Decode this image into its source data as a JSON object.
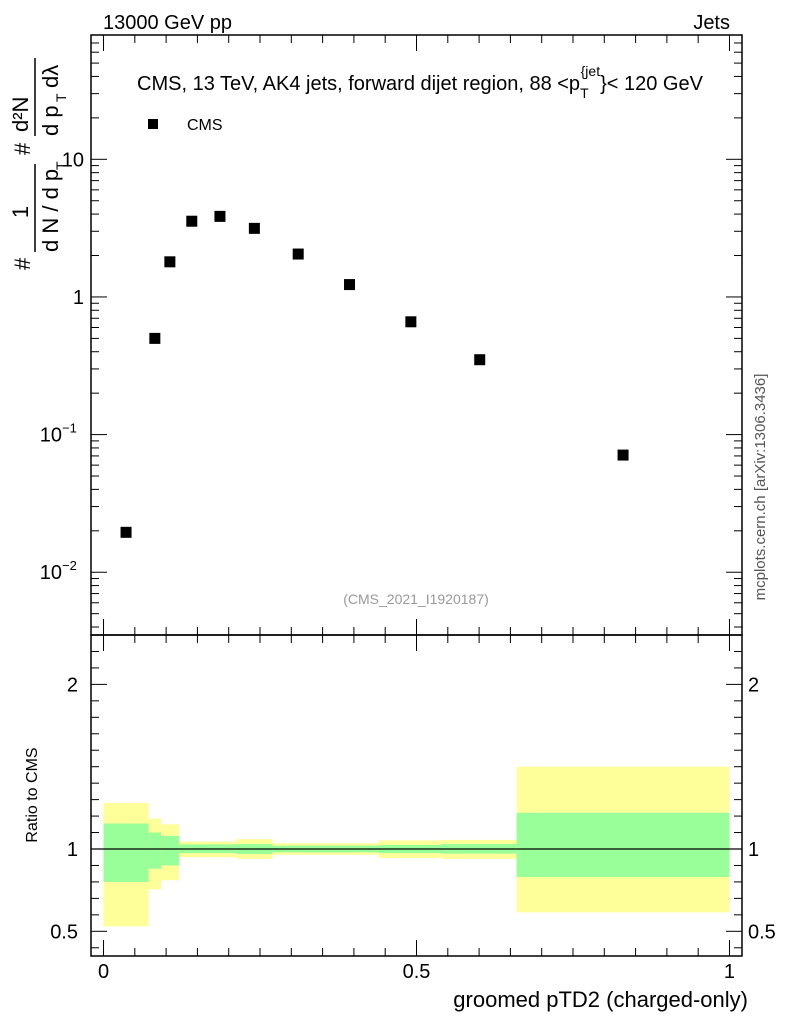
{
  "header": {
    "left": "13000 GeV pp",
    "right": "Jets",
    "side_label": "mcplots.cern.ch [arXiv:1306.3436]"
  },
  "chart_data": [
    {
      "type": "scatter",
      "panel": "main",
      "title": "CMS, 13 TeV, AK4 jets, forward dijet region, 88 <p_T^{jet}< 120 GeV",
      "title_parts": {
        "pre": "CMS, 13 TeV, AK4 jets, forward dijet region, 88 <p",
        "sub": "T",
        "sup": "{jet",
        "post": "}< 120 GeV"
      },
      "ylabel": "1/(dN/dp_T) · d²N/(dp_T dλ)",
      "ylabel_parts": {
        "frac_num": "1",
        "frac_den": "d N / d p",
        "den_sub": "T",
        "hash1": "#",
        "hash2": "#",
        "d2N": "d²N",
        "dp": "d p",
        "dp_sub": "T",
        "dl": "dλ"
      },
      "yscale": "log",
      "ylim": [
        0.0035,
        80
      ],
      "xlim": [
        -0.02,
        1.02
      ],
      "y_tick_labels": [
        {
          "value": 10,
          "label": "10"
        },
        {
          "value": 1,
          "label": "1"
        },
        {
          "value": 0.1,
          "base": "10",
          "exp": "−1"
        },
        {
          "value": 0.01,
          "base": "10",
          "exp": "−2"
        }
      ],
      "legend": {
        "label": "CMS",
        "placement": "top-left"
      },
      "watermark": "(CMS_2021_I1920187)",
      "series": [
        {
          "name": "CMS",
          "marker": "square",
          "x": [
            0.036,
            0.082,
            0.106,
            0.141,
            0.186,
            0.241,
            0.311,
            0.393,
            0.491,
            0.601,
            0.83
          ],
          "y": [
            0.0195,
            0.5,
            1.8,
            3.55,
            3.85,
            3.15,
            2.05,
            1.23,
            0.66,
            0.35,
            0.071
          ]
        }
      ]
    },
    {
      "type": "area",
      "panel": "ratio",
      "ylabel": "Ratio to CMS",
      "xlabel": "groomed pTD2 (charged-only)",
      "ylim": [
        0.35,
        2.3
      ],
      "xlim": [
        -0.02,
        1.02
      ],
      "x_tick_labels": [
        "0",
        "0.5",
        "1"
      ],
      "y_tick_labels": [
        "2",
        "1",
        "0.5"
      ],
      "reference_line": 1,
      "band_colors": {
        "inner": "#99ff99",
        "outer": "#ffff99"
      },
      "bins": [
        {
          "lo": 0.0,
          "hi": 0.072,
          "inner": [
            0.8,
            1.155
          ],
          "outer": [
            0.53,
            1.28
          ]
        },
        {
          "lo": 0.072,
          "hi": 0.092,
          "inner": [
            0.88,
            1.1
          ],
          "outer": [
            0.755,
            1.185
          ]
        },
        {
          "lo": 0.092,
          "hi": 0.121,
          "inner": [
            0.9,
            1.08
          ],
          "outer": [
            0.81,
            1.15
          ]
        },
        {
          "lo": 0.121,
          "hi": 0.212,
          "inner": [
            0.975,
            1.028
          ],
          "outer": [
            0.95,
            1.045
          ]
        },
        {
          "lo": 0.212,
          "hi": 0.27,
          "inner": [
            0.97,
            1.03
          ],
          "outer": [
            0.94,
            1.06
          ]
        },
        {
          "lo": 0.27,
          "hi": 0.44,
          "inner": [
            0.98,
            1.02
          ],
          "outer": [
            0.965,
            1.035
          ]
        },
        {
          "lo": 0.44,
          "hi": 0.54,
          "inner": [
            0.975,
            1.025
          ],
          "outer": [
            0.945,
            1.052
          ]
        },
        {
          "lo": 0.54,
          "hi": 0.66,
          "inner": [
            0.972,
            1.03
          ],
          "outer": [
            0.94,
            1.055
          ]
        },
        {
          "lo": 0.66,
          "hi": 1.0,
          "inner": [
            0.83,
            1.22
          ],
          "outer": [
            0.615,
            1.5
          ]
        }
      ]
    }
  ]
}
